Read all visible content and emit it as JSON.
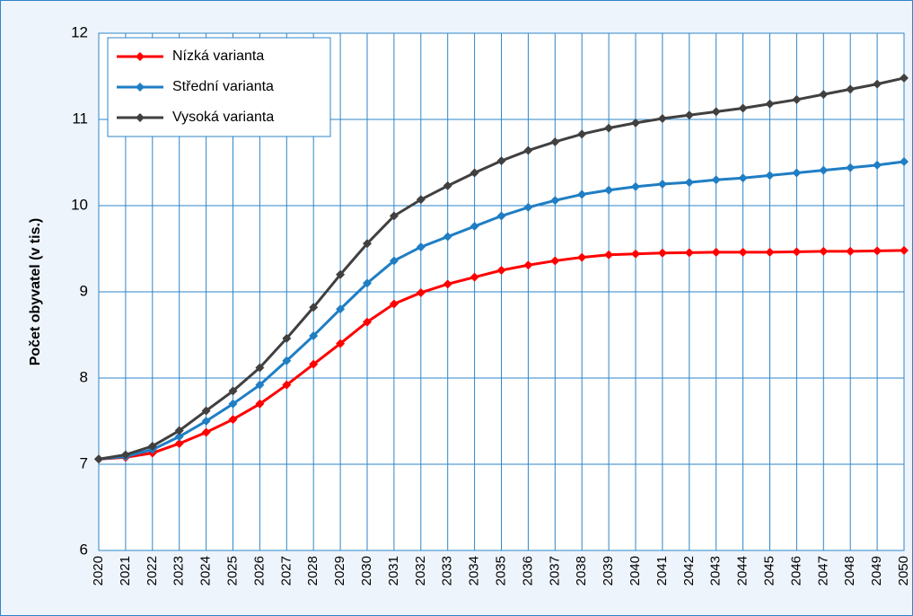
{
  "chart_data": {
    "type": "line",
    "y_label": "Počet obyvatel (v tis.)",
    "categories": [
      "2020",
      "2021",
      "2022",
      "2023",
      "2024",
      "2025",
      "2026",
      "2027",
      "2028",
      "2029",
      "2030",
      "2031",
      "2032",
      "2033",
      "2034",
      "2035",
      "2036",
      "2037",
      "2038",
      "2039",
      "2040",
      "2041",
      "2042",
      "2043",
      "2044",
      "2045",
      "2046",
      "2047",
      "2048",
      "2049",
      "2050"
    ],
    "series": [
      {
        "name": "Nízká varianta",
        "color": "#ff0000",
        "values": [
          7.06,
          7.08,
          7.13,
          7.24,
          7.37,
          7.52,
          7.7,
          7.92,
          8.16,
          8.4,
          8.65,
          8.86,
          8.99,
          9.09,
          9.17,
          9.25,
          9.31,
          9.36,
          9.4,
          9.43,
          9.44,
          9.45,
          9.455,
          9.46,
          9.46,
          9.46,
          9.465,
          9.47,
          9.47,
          9.475,
          9.48
        ]
      },
      {
        "name": "Střední varianta",
        "color": "#1f7ec4",
        "values": [
          7.06,
          7.09,
          7.17,
          7.32,
          7.5,
          7.7,
          7.92,
          8.2,
          8.49,
          8.8,
          9.1,
          9.36,
          9.52,
          9.64,
          9.76,
          9.88,
          9.98,
          10.06,
          10.13,
          10.18,
          10.22,
          10.25,
          10.27,
          10.3,
          10.32,
          10.35,
          10.38,
          10.41,
          10.44,
          10.47,
          10.51
        ]
      },
      {
        "name": "Vysoká varianta",
        "color": "#404040",
        "values": [
          7.06,
          7.11,
          7.21,
          7.39,
          7.62,
          7.85,
          8.12,
          8.46,
          8.82,
          9.2,
          9.56,
          9.88,
          10.07,
          10.23,
          10.38,
          10.52,
          10.64,
          10.74,
          10.83,
          10.9,
          10.96,
          11.01,
          11.05,
          11.09,
          11.13,
          11.18,
          11.23,
          11.29,
          11.35,
          11.41,
          11.48
        ]
      }
    ],
    "ylim": [
      6,
      12
    ],
    "yticks": [
      6,
      7,
      8,
      9,
      10,
      11,
      12
    ],
    "grid": true,
    "legend": "upper left"
  }
}
